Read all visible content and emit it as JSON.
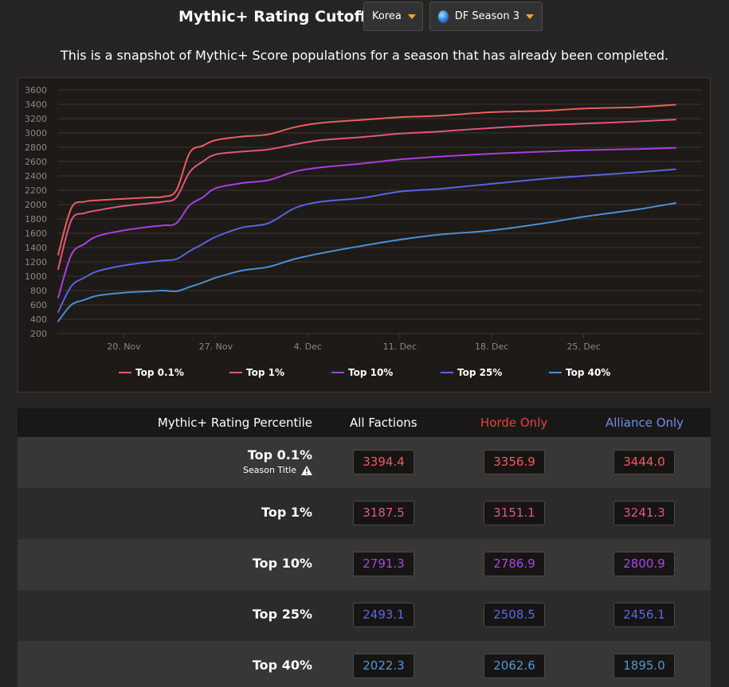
{
  "header": {
    "title": "Mythic+ Rating Cutoffs",
    "region": "Korea",
    "season": "DF Season 3",
    "caret_color": "#f4a72b"
  },
  "subtitle": "This is a snapshot of Mythic+ Score populations for a season that has already been completed.",
  "chart_data": {
    "type": "line",
    "ylim": [
      200,
      3600
    ],
    "yticks": [
      200,
      400,
      600,
      800,
      1000,
      1200,
      1400,
      1600,
      1800,
      2000,
      2200,
      2400,
      2600,
      2800,
      3000,
      3200,
      3400,
      3600
    ],
    "xlim": [
      "2023-11-15",
      "2024-01-03"
    ],
    "xticks": [
      {
        "date": "2023-11-20",
        "label": "20. Nov"
      },
      {
        "date": "2023-11-27",
        "label": "27. Nov"
      },
      {
        "date": "2023-12-04",
        "label": "4. Dec"
      },
      {
        "date": "2023-12-11",
        "label": "11. Dec"
      },
      {
        "date": "2023-12-18",
        "label": "18. Dec"
      },
      {
        "date": "2023-12-25",
        "label": "25. Dec"
      }
    ],
    "grid": true,
    "legend_position": "bottom",
    "x": [
      "2023-11-15",
      "2023-11-16",
      "2023-11-17",
      "2023-11-18",
      "2023-11-20",
      "2023-11-22",
      "2023-11-23",
      "2023-11-24",
      "2023-11-25",
      "2023-11-26",
      "2023-11-27",
      "2023-11-29",
      "2023-12-01",
      "2023-12-03",
      "2023-12-05",
      "2023-12-08",
      "2023-12-11",
      "2023-12-14",
      "2023-12-18",
      "2023-12-22",
      "2023-12-25",
      "2023-12-29",
      "2024-01-01"
    ],
    "series": [
      {
        "name": "Top 0.1%",
        "color": "#e8605c",
        "values": [
          1300,
          1950,
          2040,
          2060,
          2080,
          2100,
          2110,
          2200,
          2720,
          2820,
          2900,
          2950,
          2980,
          3080,
          3140,
          3180,
          3220,
          3240,
          3290,
          3310,
          3340,
          3360,
          3394
        ]
      },
      {
        "name": "Top 1%",
        "color": "#e2557f",
        "values": [
          1100,
          1780,
          1880,
          1920,
          1980,
          2020,
          2040,
          2100,
          2450,
          2600,
          2700,
          2740,
          2770,
          2840,
          2900,
          2940,
          2990,
          3020,
          3070,
          3110,
          3130,
          3160,
          3187
        ]
      },
      {
        "name": "Top 10%",
        "color": "#a83fdd",
        "values": [
          700,
          1300,
          1450,
          1560,
          1640,
          1690,
          1710,
          1740,
          1990,
          2100,
          2230,
          2300,
          2340,
          2460,
          2520,
          2570,
          2630,
          2670,
          2710,
          2740,
          2760,
          2775,
          2791
        ]
      },
      {
        "name": "Top 25%",
        "color": "#5b63de",
        "values": [
          500,
          860,
          980,
          1070,
          1150,
          1200,
          1220,
          1240,
          1350,
          1450,
          1550,
          1680,
          1740,
          1950,
          2040,
          2090,
          2180,
          2220,
          2290,
          2360,
          2400,
          2450,
          2493
        ]
      },
      {
        "name": "Top 40%",
        "color": "#4d8fd0",
        "values": [
          370,
          600,
          670,
          730,
          770,
          790,
          800,
          790,
          850,
          910,
          980,
          1080,
          1130,
          1240,
          1320,
          1420,
          1510,
          1580,
          1640,
          1740,
          1830,
          1930,
          2022
        ]
      }
    ],
    "grid_color": "#3a3735",
    "tick_color": "#8a8784"
  },
  "table": {
    "headers": {
      "percentile": "Mythic+ Rating Percentile",
      "all": "All Factions",
      "horde": "Horde Only",
      "alliance": "Alliance Only"
    },
    "header_colors": {
      "horde": "#e8413b",
      "alliance": "#6c8cf5"
    },
    "rows": [
      {
        "label": "Top 0.1%",
        "sub": "Season Title",
        "color": "#f1595c",
        "all": "3394.4",
        "horde": "3356.9",
        "alliance": "3444.0"
      },
      {
        "label": "Top 1%",
        "color": "#e2557f",
        "all": "3187.5",
        "horde": "3151.1",
        "alliance": "3241.3"
      },
      {
        "label": "Top 10%",
        "color": "#b040e6",
        "all": "2791.3",
        "horde": "2786.9",
        "alliance": "2800.9"
      },
      {
        "label": "Top 25%",
        "color": "#6066e8",
        "all": "2493.1",
        "horde": "2508.5",
        "alliance": "2456.1"
      },
      {
        "label": "Top 40%",
        "color": "#4f98d8",
        "all": "2022.3",
        "horde": "2062.6",
        "alliance": "1895.0"
      }
    ]
  }
}
